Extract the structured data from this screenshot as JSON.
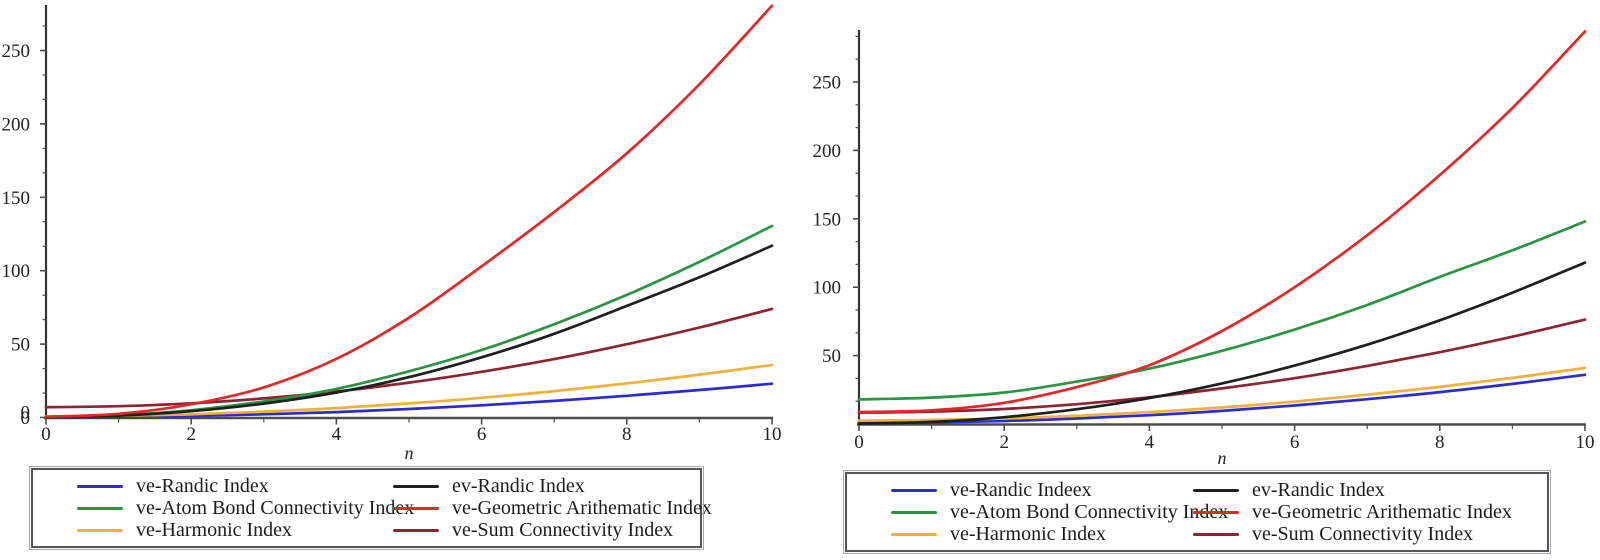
{
  "figure": {
    "background": "#ffffff",
    "axis_color": "#4d4d4d",
    "text_color": "#222222"
  },
  "chart_data": [
    {
      "type": "line",
      "position": "left",
      "title": "",
      "xlabel": "n",
      "ylabel": "",
      "xlim": [
        0,
        10
      ],
      "ylim": [
        0,
        281
      ],
      "xticks": [
        0,
        2,
        4,
        6,
        8,
        10
      ],
      "yticks": [
        0,
        50,
        100,
        150,
        200,
        250
      ],
      "show_y_zero_label": true,
      "grid": false,
      "legend_position": "below",
      "x_samples": [
        0,
        1,
        2,
        3,
        4,
        5,
        6,
        7,
        8,
        9,
        10
      ],
      "series": [
        {
          "name": "ve-Randic Index",
          "color": "#2b2bd4",
          "values": [
            0.3,
            0.6,
            1.1,
            2.2,
            3.7,
            5.8,
            8.3,
            11.3,
            14.8,
            18.7,
            23
          ]
        },
        {
          "name": "ve-Atom Bond Connectivity Index",
          "color": "#2a9442",
          "values": [
            0.5,
            1.6,
            5,
            11,
            19.5,
            31.5,
            46,
            63.5,
            83.5,
            106,
            130.5
          ]
        },
        {
          "name": "ve-Harmonic Index",
          "color": "#f0b03c",
          "values": [
            0.8,
            1.2,
            2.2,
            4,
            6.4,
            9.6,
            13.4,
            18,
            23.2,
            29.2,
            35.8
          ]
        },
        {
          "name": "ev-Randic Index",
          "color": "#1f1f1f",
          "values": [
            0.2,
            1.3,
            4.3,
            9.5,
            17,
            27.5,
            41,
            57,
            76,
            95.5,
            117
          ]
        },
        {
          "name": "ve-Geometric Arithematic Index",
          "color": "#e62728",
          "values": [
            0.5,
            2.5,
            9,
            20.5,
            40,
            68,
            103,
            140,
            180,
            227,
            280.5
          ]
        },
        {
          "name": "ve-Sum Connectivity Index",
          "color": "#8c2433",
          "values": [
            7,
            7.7,
            9.7,
            13,
            17.7,
            23.8,
            31.1,
            39.8,
            49.9,
            61.3,
            74
          ]
        }
      ],
      "legend_columns": [
        [
          0,
          1,
          2
        ],
        [
          3,
          4,
          5
        ]
      ]
    },
    {
      "type": "line",
      "position": "right",
      "title": "",
      "xlabel": "n",
      "ylabel": "",
      "xlim": [
        0,
        10
      ],
      "ylim": [
        0,
        288
      ],
      "xticks": [
        0,
        2,
        4,
        6,
        8,
        10
      ],
      "yticks": [
        50,
        100,
        150,
        200,
        250
      ],
      "show_y_zero_label": false,
      "grid": false,
      "legend_position": "below",
      "x_samples": [
        0,
        1,
        2,
        3,
        4,
        5,
        6,
        7,
        8,
        9,
        10
      ],
      "series": [
        {
          "name": "ve-Randic Indeex",
          "color": "#2b2bd4",
          "values": [
            0.8,
            1.2,
            2.2,
            4,
            6.4,
            9.6,
            13.5,
            18.1,
            23.3,
            29.3,
            36
          ]
        },
        {
          "name": "ve-Atom Bond Connectivity Index",
          "color": "#2a9442",
          "values": [
            18,
            19.3,
            23,
            31,
            40.5,
            53.5,
            69,
            87,
            107.5,
            127,
            148
          ]
        },
        {
          "name": "ve-Harmonic Index",
          "color": "#f0b03c",
          "values": [
            2.5,
            2.9,
            4,
            6,
            8.7,
            12.1,
            16.4,
            21.4,
            27.1,
            33.7,
            41
          ]
        },
        {
          "name": "ev-Randic Index",
          "color": "#1f1f1f",
          "values": [
            0.3,
            1.5,
            5,
            10.8,
            19,
            29.7,
            42.7,
            58,
            75.8,
            96,
            118
          ]
        },
        {
          "name": "ve-Geometric Arithematic Index",
          "color": "#e62728",
          "values": [
            8.8,
            10,
            15.5,
            27,
            43,
            68,
            100,
            138,
            182,
            231,
            287
          ]
        },
        {
          "name": "ve-Sum Connectivity Index",
          "color": "#8c2433",
          "values": [
            8.3,
            9,
            11,
            14.5,
            19.5,
            26,
            33.5,
            42.5,
            52.5,
            63.8,
            76.3
          ]
        }
      ],
      "legend_columns": [
        [
          0,
          1,
          2
        ],
        [
          3,
          4,
          5
        ]
      ]
    }
  ]
}
